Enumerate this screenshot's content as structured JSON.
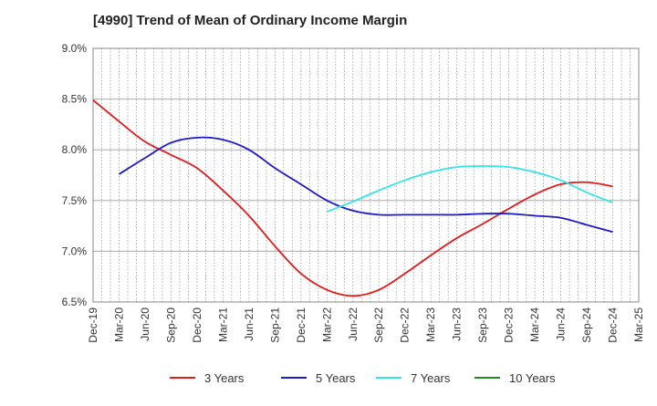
{
  "chart_data": {
    "type": "line",
    "title": "[4990]  Trend of Mean of Ordinary Income Margin",
    "xlabel": "",
    "ylabel": "",
    "ylim": [
      6.5,
      9.0
    ],
    "yticks": [
      6.5,
      7.0,
      7.5,
      8.0,
      8.5,
      9.0
    ],
    "ytick_labels": [
      "6.5%",
      "7.0%",
      "7.5%",
      "8.0%",
      "8.5%",
      "9.0%"
    ],
    "x_categories": [
      "Dec-19",
      "Mar-20",
      "Jun-20",
      "Sep-20",
      "Dec-20",
      "Mar-21",
      "Jun-21",
      "Sep-21",
      "Dec-21",
      "Mar-22",
      "Jun-22",
      "Sep-22",
      "Dec-22",
      "Mar-23",
      "Jun-23",
      "Sep-23",
      "Dec-23",
      "Mar-24",
      "Jun-24",
      "Sep-24",
      "Dec-24",
      "Mar-25"
    ],
    "grid": true,
    "legend_position": "bottom",
    "series": [
      {
        "name": "3 Years",
        "color": "#e31a1c",
        "values": [
          8.49,
          8.28,
          8.08,
          7.95,
          7.82,
          7.6,
          7.35,
          7.05,
          6.78,
          6.62,
          6.56,
          6.62,
          6.78,
          6.96,
          7.13,
          7.27,
          7.42,
          7.56,
          7.66,
          7.68,
          7.64,
          null
        ]
      },
      {
        "name": "5 Years",
        "color": "#1a1ac8",
        "values": [
          null,
          7.76,
          7.92,
          8.07,
          8.12,
          8.1,
          8.0,
          7.82,
          7.66,
          7.5,
          7.4,
          7.36,
          7.36,
          7.36,
          7.36,
          7.37,
          7.37,
          7.35,
          7.33,
          7.26,
          7.19,
          null
        ]
      },
      {
        "name": "7 Years",
        "color": "#33e6e6",
        "values": [
          null,
          null,
          null,
          null,
          null,
          null,
          null,
          null,
          null,
          7.39,
          7.49,
          7.6,
          7.7,
          7.78,
          7.83,
          7.84,
          7.83,
          7.78,
          7.7,
          7.58,
          7.48,
          null
        ]
      },
      {
        "name": "10 Years",
        "color": "#228b22",
        "values": []
      }
    ]
  }
}
